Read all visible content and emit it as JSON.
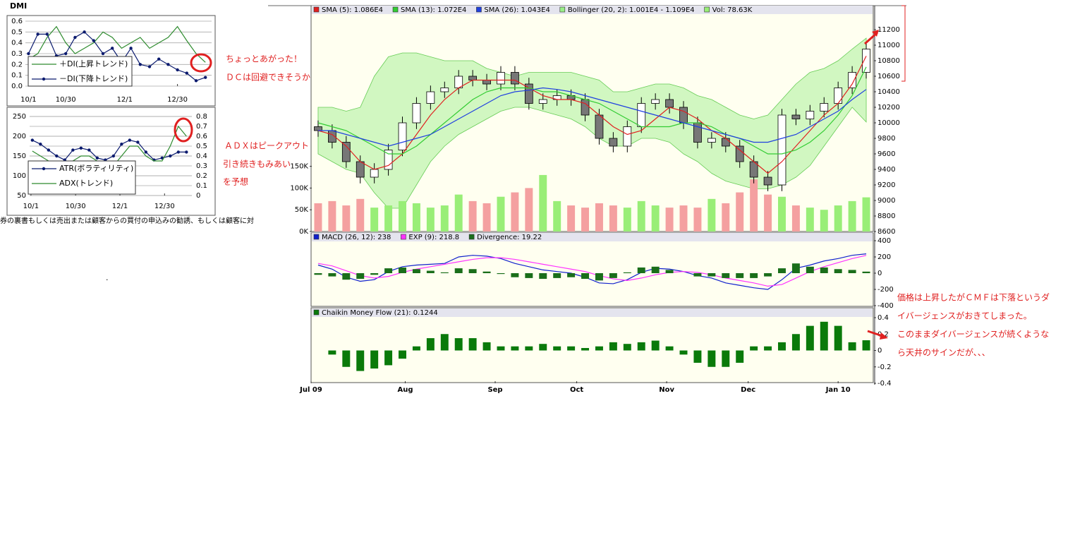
{
  "chart_data": [
    {
      "type": "line",
      "title": "DMI",
      "grid": true,
      "x": [
        -3,
        0,
        3,
        6,
        9,
        12,
        15,
        18,
        21,
        24,
        27,
        30,
        33,
        36,
        39,
        42,
        45,
        48,
        51,
        54
      ],
      "xlim": [
        -4,
        56
      ],
      "xticks": [
        {
          "value": -3,
          "label": "10/1"
        },
        {
          "value": 9,
          "label": "10/30"
        },
        {
          "value": 28,
          "label": "12/1"
        },
        {
          "value": 45,
          "label": "12/30"
        }
      ],
      "ylim": [
        0,
        0.6
      ],
      "yticks": [
        {
          "value": 0,
          "label": "0.0"
        },
        0.1,
        0.2,
        0.3,
        0.4,
        0.5,
        0.6
      ],
      "series": [
        {
          "name": "＋DI(上昇トレンド)",
          "color": "#2e8b2e",
          "values": [
            0.25,
            0.3,
            0.45,
            0.55,
            0.4,
            0.3,
            0.35,
            0.4,
            0.5,
            0.45,
            0.35,
            0.4,
            0.45,
            0.35,
            0.4,
            0.45,
            0.55,
            0.42,
            0.3,
            0.22
          ]
        },
        {
          "name": "－DI(下降トレンド)",
          "color": "#0a1a6e",
          "markers": true,
          "values": [
            0.3,
            0.48,
            0.48,
            0.28,
            0.3,
            0.45,
            0.5,
            0.42,
            0.3,
            0.35,
            0.22,
            0.35,
            0.2,
            0.18,
            0.25,
            0.2,
            0.15,
            0.12,
            0.05,
            0.08
          ]
        }
      ]
    },
    {
      "type": "line",
      "grid": true,
      "x": [
        -3,
        0,
        3,
        6,
        9,
        12,
        15,
        18,
        21,
        24,
        27,
        30,
        33,
        36,
        39,
        42,
        45,
        48,
        51,
        54
      ],
      "xlim": [
        -4,
        56
      ],
      "xticks": [
        {
          "value": -3.5,
          "label": "10/1"
        },
        {
          "value": 13,
          "label": "10/30"
        },
        {
          "value": 29.4,
          "label": "12/1"
        },
        {
          "value": 45.9,
          "label": "12/30"
        }
      ],
      "ylim": [
        50,
        250
      ],
      "yticks": [
        50,
        100,
        150,
        200,
        250
      ],
      "y2lim": [
        0,
        0.8
      ],
      "y2ticks": [
        0,
        0.1,
        0.2,
        0.3,
        0.4,
        0.5,
        0.6,
        0.7,
        0.8
      ],
      "series": [
        {
          "name": "ATR(ボラティリティ)",
          "color": "#0a1a6e",
          "markers": true,
          "values": [
            190,
            180,
            165,
            150,
            140,
            165,
            170,
            165,
            145,
            140,
            150,
            180,
            190,
            185,
            160,
            140,
            145,
            150,
            160,
            160
          ]
        },
        {
          "name": "ADX(トレンド)",
          "color": "#2e8b2e",
          "axis": "y2",
          "values": [
            0.45,
            0.4,
            0.35,
            0.3,
            0.3,
            0.35,
            0.4,
            0.4,
            0.35,
            0.3,
            0.3,
            0.4,
            0.5,
            0.5,
            0.4,
            0.35,
            0.35,
            0.5,
            0.7,
            0.6
          ]
        }
      ]
    },
    {
      "type": "candlestick",
      "x": [
        0,
        1,
        2,
        3,
        4,
        5,
        6,
        7,
        8,
        9,
        10,
        11,
        12,
        13,
        14,
        15,
        16,
        17,
        18,
        19,
        20,
        21,
        22,
        23,
        24,
        25,
        26,
        27,
        28,
        29,
        30,
        31,
        32,
        33,
        34,
        35,
        36,
        37,
        38,
        39
      ],
      "xlim": [
        -0.5,
        39.5
      ],
      "ylim": [
        8600,
        11400
      ],
      "yticks": [
        8600,
        8800,
        9000,
        9200,
        9400,
        9600,
        9800,
        10000,
        10200,
        10400,
        10600,
        10800,
        11000,
        11200
      ],
      "y2lim": [
        0,
        500000
      ],
      "y2ticks": [
        {
          "value": 0,
          "label": "0K"
        },
        {
          "value": 50000,
          "label": "50K"
        },
        {
          "value": 100000,
          "label": "100K"
        },
        {
          "value": 150000,
          "label": "150K"
        }
      ],
      "up_color": "#ffffff",
      "down_color": "#777777",
      "open": [
        9950,
        9900,
        9750,
        9500,
        9300,
        9400,
        9650,
        10000,
        10250,
        10400,
        10450,
        10600,
        10550,
        10500,
        10650,
        10500,
        10250,
        10300,
        10350,
        10300,
        10100,
        9800,
        9700,
        9950,
        10250,
        10300,
        10200,
        10000,
        9750,
        9800,
        9700,
        9500,
        9300,
        9200,
        10100,
        10050,
        10150,
        10250,
        10450,
        10650
      ],
      "high": [
        10030,
        9980,
        9830,
        9580,
        9480,
        9730,
        10080,
        10330,
        10480,
        10530,
        10680,
        10680,
        10630,
        10730,
        10730,
        10580,
        10380,
        10430,
        10430,
        10380,
        10180,
        9880,
        10030,
        10330,
        10380,
        10380,
        10280,
        10080,
        9880,
        9880,
        9780,
        9580,
        9380,
        10180,
        10180,
        10230,
        10330,
        10530,
        10730,
        11030
      ],
      "low": [
        9820,
        9670,
        9420,
        9220,
        9220,
        9320,
        9570,
        9920,
        10170,
        10320,
        10370,
        10470,
        10420,
        10420,
        10420,
        10170,
        10170,
        10220,
        10220,
        10020,
        9720,
        9620,
        9620,
        9870,
        10170,
        10120,
        9920,
        9670,
        9670,
        9620,
        9420,
        9220,
        9120,
        9120,
        9970,
        9970,
        10070,
        10170,
        10370,
        10570
      ],
      "close": [
        9900,
        9750,
        9500,
        9300,
        9400,
        9650,
        10000,
        10250,
        10400,
        10450,
        10600,
        10550,
        10500,
        10650,
        10500,
        10250,
        10300,
        10350,
        10300,
        10100,
        9800,
        9700,
        9950,
        10250,
        10300,
        10200,
        10000,
        9750,
        9800,
        9700,
        9500,
        9300,
        9200,
        10100,
        10050,
        10150,
        10250,
        10450,
        10650,
        10950
      ],
      "series": [
        {
          "name": "SMA (5): 1.086E4",
          "color": "#e02020",
          "values": [
            9900,
            9850,
            9700,
            9500,
            9400,
            9450,
            9600,
            9850,
            10100,
            10300,
            10450,
            10550,
            10550,
            10550,
            10550,
            10450,
            10350,
            10300,
            10300,
            10250,
            10100,
            9950,
            9850,
            9900,
            10050,
            10200,
            10150,
            10050,
            9900,
            9800,
            9650,
            9500,
            9350,
            9500,
            9700,
            9900,
            10100,
            10250,
            10500,
            10860
          ]
        },
        {
          "name": "SMA (13): 1.072E4",
          "color": "#33cc33",
          "values": [
            10000,
            9950,
            9900,
            9800,
            9700,
            9600,
            9600,
            9700,
            9850,
            10000,
            10150,
            10300,
            10400,
            10450,
            10450,
            10450,
            10400,
            10400,
            10350,
            10300,
            10250,
            10150,
            10050,
            9950,
            9950,
            9950,
            10000,
            10000,
            9950,
            9850,
            9800,
            9700,
            9600,
            9600,
            9650,
            9750,
            9900,
            10100,
            10350,
            10720
          ]
        },
        {
          "name": "SMA (26): 1.043E4",
          "color": "#2040e0",
          "values": [
            9900,
            9900,
            9850,
            9800,
            9750,
            9700,
            9750,
            9800,
            9850,
            9950,
            10050,
            10150,
            10250,
            10350,
            10400,
            10420,
            10450,
            10430,
            10400,
            10350,
            10300,
            10250,
            10200,
            10150,
            10100,
            10050,
            10000,
            9950,
            9900,
            9850,
            9800,
            9750,
            9750,
            9800,
            9850,
            9950,
            10050,
            10150,
            10300,
            10430
          ]
        },
        {
          "name": "Bollinger (20, 2): 1.001E4 - 1.109E4",
          "color": "#99ee88",
          "values": [
            10200,
            10200,
            10150,
            10200,
            10600,
            10850,
            10900,
            10900,
            10850,
            10800,
            10800,
            10800,
            10700,
            10650,
            10600,
            10650,
            10650,
            10650,
            10650,
            10600,
            10550,
            10400,
            10400,
            10450,
            10500,
            10500,
            10450,
            10350,
            10300,
            10200,
            10100,
            10050,
            10100,
            10300,
            10500,
            10650,
            10700,
            10800,
            10950,
            11090
          ],
          "lower": [
            9600,
            9500,
            9400,
            9350,
            9100,
            8900,
            8900,
            9200,
            9500,
            9700,
            9850,
            9950,
            10050,
            10150,
            10200,
            10200,
            10150,
            10100,
            10050,
            9950,
            9800,
            9700,
            9700,
            9800,
            9800,
            9750,
            9600,
            9500,
            9350,
            9250,
            9200,
            9150,
            9150,
            9200,
            9300,
            9450,
            9700,
            9950,
            10200,
            10010
          ]
        }
      ],
      "volume": {
        "name": "Vol: 78.63K",
        "color": "#99ee77",
        "down_color": "#f4a0a0",
        "axis": "y2",
        "values": [
          65000,
          70000,
          60000,
          75000,
          55000,
          60000,
          70000,
          65000,
          55000,
          60000,
          85000,
          70000,
          65000,
          80000,
          90000,
          100000,
          130000,
          70000,
          60000,
          55000,
          65000,
          60000,
          55000,
          70000,
          60000,
          55000,
          60000,
          55000,
          75000,
          65000,
          90000,
          120000,
          85000,
          80000,
          60000,
          55000,
          50000,
          60000,
          70000,
          78630
        ]
      }
    },
    {
      "type": "line",
      "x": [
        0,
        1,
        2,
        3,
        4,
        5,
        6,
        7,
        8,
        9,
        10,
        11,
        12,
        13,
        14,
        15,
        16,
        17,
        18,
        19,
        20,
        21,
        22,
        23,
        24,
        25,
        26,
        27,
        28,
        29,
        30,
        31,
        32,
        33,
        34,
        35,
        36,
        37,
        38,
        39
      ],
      "xlim": [
        -0.5,
        39.5
      ],
      "ylim": [
        -400,
        400
      ],
      "yticks": [
        -400,
        -200,
        0,
        200,
        400
      ],
      "series": [
        {
          "name": "MACD (26, 12): 238",
          "color": "#1020cc",
          "values": [
            100,
            50,
            -50,
            -100,
            -80,
            20,
            80,
            100,
            110,
            120,
            200,
            220,
            210,
            180,
            120,
            80,
            40,
            20,
            0,
            -50,
            -120,
            -130,
            -80,
            10,
            60,
            50,
            20,
            -30,
            -60,
            -120,
            -150,
            -180,
            -200,
            -80,
            60,
            100,
            150,
            180,
            220,
            238
          ]
        },
        {
          "name": "EXP (9): 218.8",
          "color": "#ff33ff",
          "values": [
            120,
            90,
            30,
            -30,
            -60,
            -40,
            10,
            50,
            80,
            110,
            140,
            170,
            190,
            190,
            170,
            140,
            110,
            80,
            50,
            20,
            -30,
            -70,
            -90,
            -60,
            -20,
            10,
            20,
            10,
            -20,
            -60,
            -90,
            -120,
            -160,
            -140,
            -60,
            20,
            80,
            130,
            180,
            218.8
          ]
        },
        {
          "name": "Divergence: 19.22",
          "color": "#1a6e1a",
          "style": "bar",
          "values": [
            -20,
            -40,
            -80,
            -70,
            -20,
            60,
            70,
            50,
            30,
            10,
            60,
            50,
            20,
            -10,
            -50,
            -60,
            -70,
            -60,
            -50,
            -70,
            -90,
            -60,
            10,
            70,
            80,
            40,
            0,
            -40,
            -40,
            -60,
            -60,
            -60,
            -40,
            60,
            120,
            80,
            70,
            50,
            40,
            19.22
          ]
        }
      ]
    },
    {
      "type": "bar",
      "x": [
        0,
        1,
        2,
        3,
        4,
        5,
        6,
        7,
        8,
        9,
        10,
        11,
        12,
        13,
        14,
        15,
        16,
        17,
        18,
        19,
        20,
        21,
        22,
        23,
        24,
        25,
        26,
        27,
        28,
        29,
        30,
        31,
        32,
        33,
        34,
        35,
        36,
        37,
        38,
        39
      ],
      "xlim": [
        -0.5,
        39.5
      ],
      "xticks": [
        {
          "value": -0.5,
          "label": "Jul 09"
        },
        {
          "value": 6.2,
          "label": "Aug"
        },
        {
          "value": 12.6,
          "label": "Sep"
        },
        {
          "value": 18.4,
          "label": "Oct"
        },
        {
          "value": 24.8,
          "label": "Nov"
        },
        {
          "value": 30.6,
          "label": "Dec"
        },
        {
          "value": 37,
          "label": "Jan 10"
        }
      ],
      "ylim": [
        -0.4,
        0.4
      ],
      "yticks": [
        -0.4,
        -0.2,
        0,
        0.2,
        0.4
      ],
      "series": [
        {
          "name": "Chaikin Money Flow (21): 0.1244",
          "color": "#0a7a0a",
          "values": [
            0,
            -0.05,
            -0.2,
            -0.25,
            -0.22,
            -0.18,
            -0.1,
            0.05,
            0.15,
            0.2,
            0.15,
            0.15,
            0.1,
            0.05,
            0.05,
            0.05,
            0.08,
            0.05,
            0.05,
            0.03,
            0.05,
            0.1,
            0.08,
            0.1,
            0.12,
            0.05,
            -0.05,
            -0.15,
            -0.2,
            -0.2,
            -0.15,
            0.05,
            0.05,
            0.1,
            0.2,
            0.3,
            0.35,
            0.3,
            0.1,
            0.1244
          ]
        }
      ]
    }
  ],
  "annotations": [
    "ちょっとあがった！",
    "ＤＣは回避できそうか",
    "ＡＤＸはピークアウト",
    "引き続きもみあい",
    "を予想",
    "価格は上昇したがＣＭＦは下落というダ",
    "イバージェンスがおきてしまった。",
    "このままダイバージェンスが続くような",
    "ら天井のサインだが、、、"
  ],
  "footer_text": "券の裏書もしくは売出または顧客からの買付の申込みの勧誘、もしくは顧客に対"
}
